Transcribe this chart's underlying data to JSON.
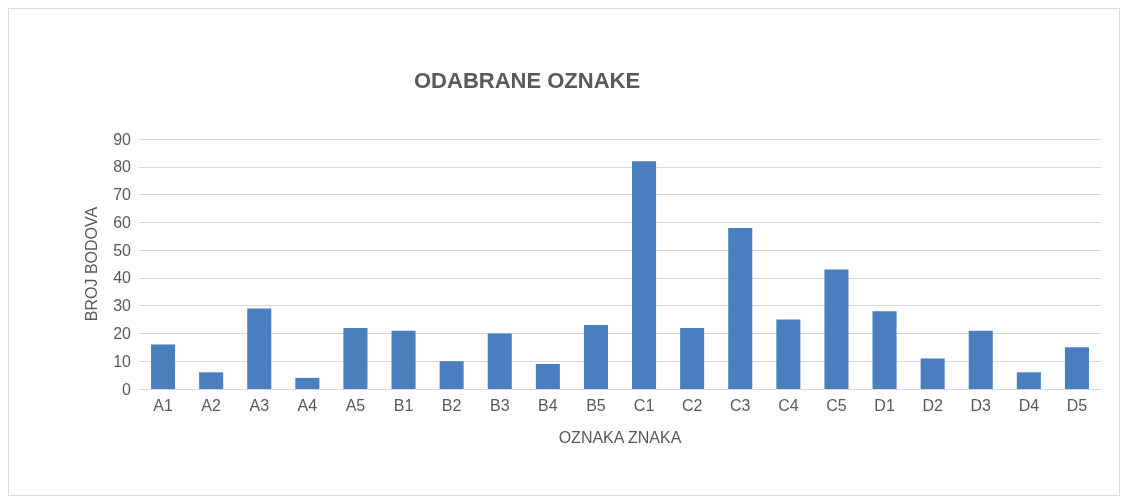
{
  "chart_data": {
    "type": "bar",
    "title": "ODABRANE OZNAKE",
    "xlabel": "OZNAKA ZNAKA",
    "ylabel": "BROJ BODOVA",
    "categories": [
      "A1",
      "A2",
      "A3",
      "A4",
      "A5",
      "B1",
      "B2",
      "B3",
      "B4",
      "B5",
      "C1",
      "C2",
      "C3",
      "C4",
      "C5",
      "D1",
      "D2",
      "D3",
      "D4",
      "D5"
    ],
    "values": [
      16,
      6,
      29,
      4,
      22,
      21,
      10,
      20,
      9,
      23,
      82,
      22,
      58,
      25,
      43,
      28,
      11,
      21,
      6,
      15
    ],
    "color": "#4a7ebf",
    "ylim": [
      0,
      90
    ],
    "yticks": [
      0,
      10,
      20,
      30,
      40,
      50,
      60,
      70,
      80,
      90
    ],
    "grid": "y"
  }
}
